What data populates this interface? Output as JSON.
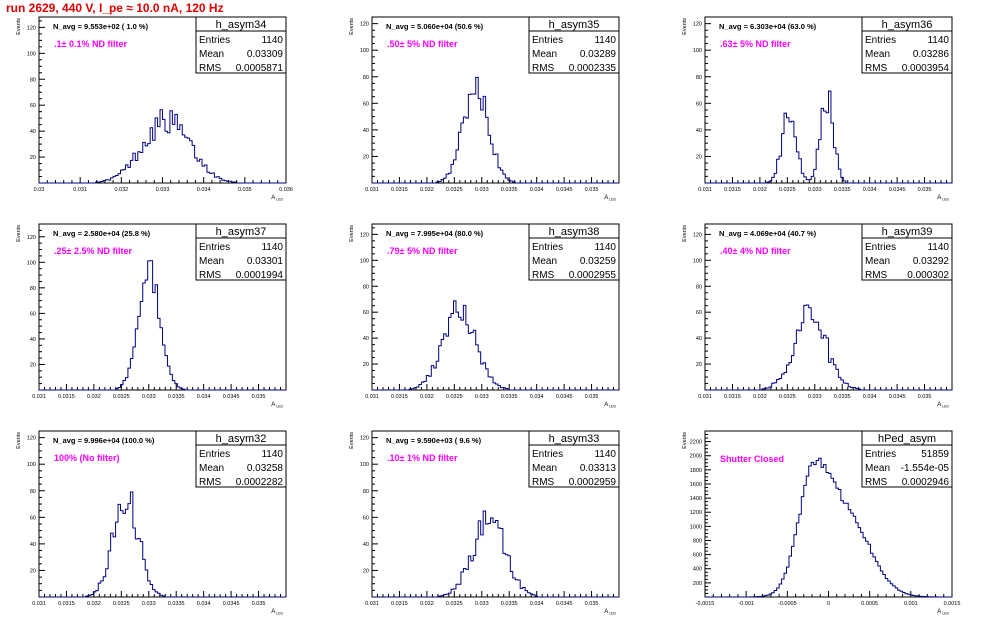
{
  "page": {
    "run_title": "run 2629,   440 V, I_pe ≈ 10.0 nA, 120 Hz"
  },
  "style": {
    "line_color": "#000080",
    "label_color": "#ff00ff",
    "title_color": "#e00000",
    "axis_color": "#000000"
  },
  "stats_labels": {
    "entries": "Entries",
    "mean": "Mean",
    "rms": "RMS"
  },
  "chart_data": [
    {
      "type": "histogram",
      "name": "h_asym34",
      "nav": "N_avg = 9.553e+02 ( 1.0 %)",
      "filter": ".1± 0.1% ND filter",
      "entries": "1140",
      "mean": "0.03309",
      "rms": "0.0005871",
      "xlabel": "A_LED",
      "ylabel": "Events",
      "xlim": [
        0.03,
        0.036
      ],
      "ylim": [
        0,
        128
      ],
      "xticks": [
        0.03,
        0.031,
        0.032,
        0.033,
        0.034,
        0.035,
        0.036
      ],
      "xticklabels": [
        "0.03",
        "0.031",
        "0.032",
        "0.033",
        "0.034",
        "0.035",
        "0.036"
      ],
      "yticks": [
        20,
        40,
        60,
        80,
        100,
        120
      ],
      "peaks": [
        {
          "mu": 0.03309,
          "sigma": 0.00058,
          "height": 48
        }
      ],
      "noise": 0.22
    },
    {
      "type": "histogram",
      "name": "h_asym35",
      "nav": "N_avg = 5.060e+04 (50.6 %)",
      "filter": ".50± 5% ND filter",
      "entries": "1140",
      "mean": "0.03289",
      "rms": "0.0002335",
      "xlabel": "A_LED",
      "ylabel": "Events",
      "xlim": [
        0.031,
        0.0355
      ],
      "ylim": [
        0,
        125
      ],
      "xticks": [
        0.031,
        0.0315,
        0.032,
        0.0325,
        0.033,
        0.0335,
        0.034,
        0.0345,
        0.035
      ],
      "xticklabels": [
        "0.031",
        "0.0315",
        "0.032",
        "0.0325",
        "0.033",
        "0.0335",
        "0.034",
        "0.0345",
        "0.035"
      ],
      "yticks": [
        20,
        40,
        60,
        80,
        100,
        120
      ],
      "peaks": [
        {
          "mu": 0.03289,
          "sigma": 0.00023,
          "height": 74
        }
      ],
      "noise": 0.2
    },
    {
      "type": "histogram",
      "name": "h_asym36",
      "nav": "N_avg = 6.303e+04 (63.0 %)",
      "filter": ".63± 5% ND filter",
      "entries": "1140",
      "mean": "0.03286",
      "rms": "0.0003954",
      "xlabel": "A_LED",
      "ylabel": "Events",
      "xlim": [
        0.031,
        0.0355
      ],
      "ylim": [
        0,
        125
      ],
      "xticks": [
        0.031,
        0.0315,
        0.032,
        0.0325,
        0.033,
        0.0335,
        0.034,
        0.0345,
        0.035
      ],
      "xticklabels": [
        "0.031",
        "0.0315",
        "0.032",
        "0.0325",
        "0.033",
        "0.0335",
        "0.034",
        "0.0345",
        "0.035"
      ],
      "yticks": [
        20,
        40,
        60,
        80,
        100,
        120
      ],
      "peaks": [
        {
          "mu": 0.03253,
          "sigma": 0.00013,
          "height": 52
        },
        {
          "mu": 0.03322,
          "sigma": 0.00012,
          "height": 64
        }
      ],
      "noise": 0.2
    },
    {
      "type": "histogram",
      "name": "h_asym37",
      "nav": "N_avg = 2.580e+04 (25.8 %)",
      "filter": ".25± 2.5% ND filter",
      "entries": "1140",
      "mean": "0.03301",
      "rms": "0.0001994",
      "xlabel": "A_LED",
      "ylabel": "Events",
      "xlim": [
        0.031,
        0.0355
      ],
      "ylim": [
        0,
        130
      ],
      "xticks": [
        0.031,
        0.0315,
        0.032,
        0.0325,
        0.033,
        0.0335,
        0.034,
        0.0345,
        0.035
      ],
      "xticklabels": [
        "0.031",
        "0.0315",
        "0.032",
        "0.0325",
        "0.033",
        "0.0335",
        "0.034",
        "0.0345",
        "0.035"
      ],
      "yticks": [
        20,
        40,
        60,
        80,
        100,
        120
      ],
      "peaks": [
        {
          "mu": 0.03301,
          "sigma": 0.0002,
          "height": 92
        }
      ],
      "noise": 0.12
    },
    {
      "type": "histogram",
      "name": "h_asym38",
      "nav": "N_avg = 7.995e+04 (80.0 %)",
      "filter": ".79± 5% ND filter",
      "entries": "1140",
      "mean": "0.03259",
      "rms": "0.0002955",
      "xlabel": "A_LED",
      "ylabel": "Events",
      "xlim": [
        0.031,
        0.0355
      ],
      "ylim": [
        0,
        128
      ],
      "xticks": [
        0.031,
        0.0315,
        0.032,
        0.0325,
        0.033,
        0.0335,
        0.034,
        0.0345,
        0.035
      ],
      "xticklabels": [
        "0.031",
        "0.0315",
        "0.032",
        "0.0325",
        "0.033",
        "0.0335",
        "0.034",
        "0.0345",
        "0.035"
      ],
      "yticks": [
        20,
        40,
        60,
        80,
        100,
        120
      ],
      "peaks": [
        {
          "mu": 0.03259,
          "sigma": 0.0003,
          "height": 58
        }
      ],
      "noise": 0.24
    },
    {
      "type": "histogram",
      "name": "h_asym39",
      "nav": "N_avg = 4.069e+04 (40.7 %)",
      "filter": ".40± 4% ND filter",
      "entries": "1140",
      "mean": "0.03292",
      "rms": "0.000302",
      "xlabel": "A_LED",
      "ylabel": "Events",
      "xlim": [
        0.031,
        0.0355
      ],
      "ylim": [
        0,
        128
      ],
      "xticks": [
        0.031,
        0.0315,
        0.032,
        0.0325,
        0.033,
        0.0335,
        0.034,
        0.0345,
        0.035
      ],
      "xticklabels": [
        "0.031",
        "0.0315",
        "0.032",
        "0.0325",
        "0.033",
        "0.0335",
        "0.034",
        "0.0345",
        "0.035"
      ],
      "yticks": [
        20,
        40,
        60,
        80,
        100,
        120
      ],
      "peaks": [
        {
          "mu": 0.03292,
          "sigma": 0.0003,
          "height": 56
        }
      ],
      "noise": 0.26
    },
    {
      "type": "histogram",
      "name": "h_asym32",
      "nav": "N_avg = 9.996e+04 (100.0 %)",
      "filter": "100% (No filter)",
      "entries": "1140",
      "mean": "0.03258",
      "rms": "0.0002282",
      "xlabel": "A_LED",
      "ylabel": "Events",
      "xlim": [
        0.031,
        0.0355
      ],
      "ylim": [
        0,
        125
      ],
      "xticks": [
        0.031,
        0.0315,
        0.032,
        0.0325,
        0.033,
        0.0335,
        0.034,
        0.0345,
        0.035
      ],
      "xticklabels": [
        "0.031",
        "0.0315",
        "0.032",
        "0.0325",
        "0.033",
        "0.0335",
        "0.034",
        "0.0345",
        "0.035"
      ],
      "yticks": [
        20,
        40,
        60,
        80,
        100,
        120
      ],
      "peaks": [
        {
          "mu": 0.03258,
          "sigma": 0.00023,
          "height": 76
        }
      ],
      "noise": 0.2
    },
    {
      "type": "histogram",
      "name": "h_asym33",
      "nav": "N_avg = 9.590e+03 ( 9.6 %)",
      "filter": ".10± 1% ND filter",
      "entries": "1140",
      "mean": "0.03313",
      "rms": "0.0002959",
      "xlabel": "A_LED",
      "ylabel": "Events",
      "xlim": [
        0.031,
        0.0355
      ],
      "ylim": [
        0,
        125
      ],
      "xticks": [
        0.031,
        0.0315,
        0.032,
        0.0325,
        0.033,
        0.0335,
        0.034,
        0.0345,
        0.035
      ],
      "xticklabels": [
        "0.031",
        "0.0315",
        "0.032",
        "0.0325",
        "0.033",
        "0.0335",
        "0.034",
        "0.0345",
        "0.035"
      ],
      "yticks": [
        20,
        40,
        60,
        80,
        100,
        120
      ],
      "peaks": [
        {
          "mu": 0.03313,
          "sigma": 0.0003,
          "height": 58
        }
      ],
      "noise": 0.22
    },
    {
      "type": "histogram",
      "name": "hPed_asym",
      "nav": "",
      "filter": "Shutter Closed",
      "entries": "51859",
      "mean": "-1.554e-05",
      "rms": "0.0002946",
      "xlabel": "A_LED",
      "ylabel": "Events",
      "xlim": [
        -0.0015,
        0.0015
      ],
      "ylim": [
        0,
        2350
      ],
      "xticks": [
        -0.0015,
        -0.001,
        -0.0005,
        0,
        0.0005,
        0.001,
        0.0015
      ],
      "xticklabels": [
        "-0.0015",
        "-0.001",
        "-0.0005",
        "0",
        "0.0005",
        "0.001",
        "0.0015"
      ],
      "yticks": [
        200,
        400,
        600,
        800,
        1000,
        1200,
        1400,
        1600,
        1800,
        2000,
        2200
      ],
      "peaks": [
        {
          "mu": -0.0002,
          "sigma": 0.00018,
          "height": 1300
        },
        {
          "mu": 0.00018,
          "sigma": 0.0003,
          "height": 1250
        }
      ],
      "noise": 0.04
    }
  ]
}
